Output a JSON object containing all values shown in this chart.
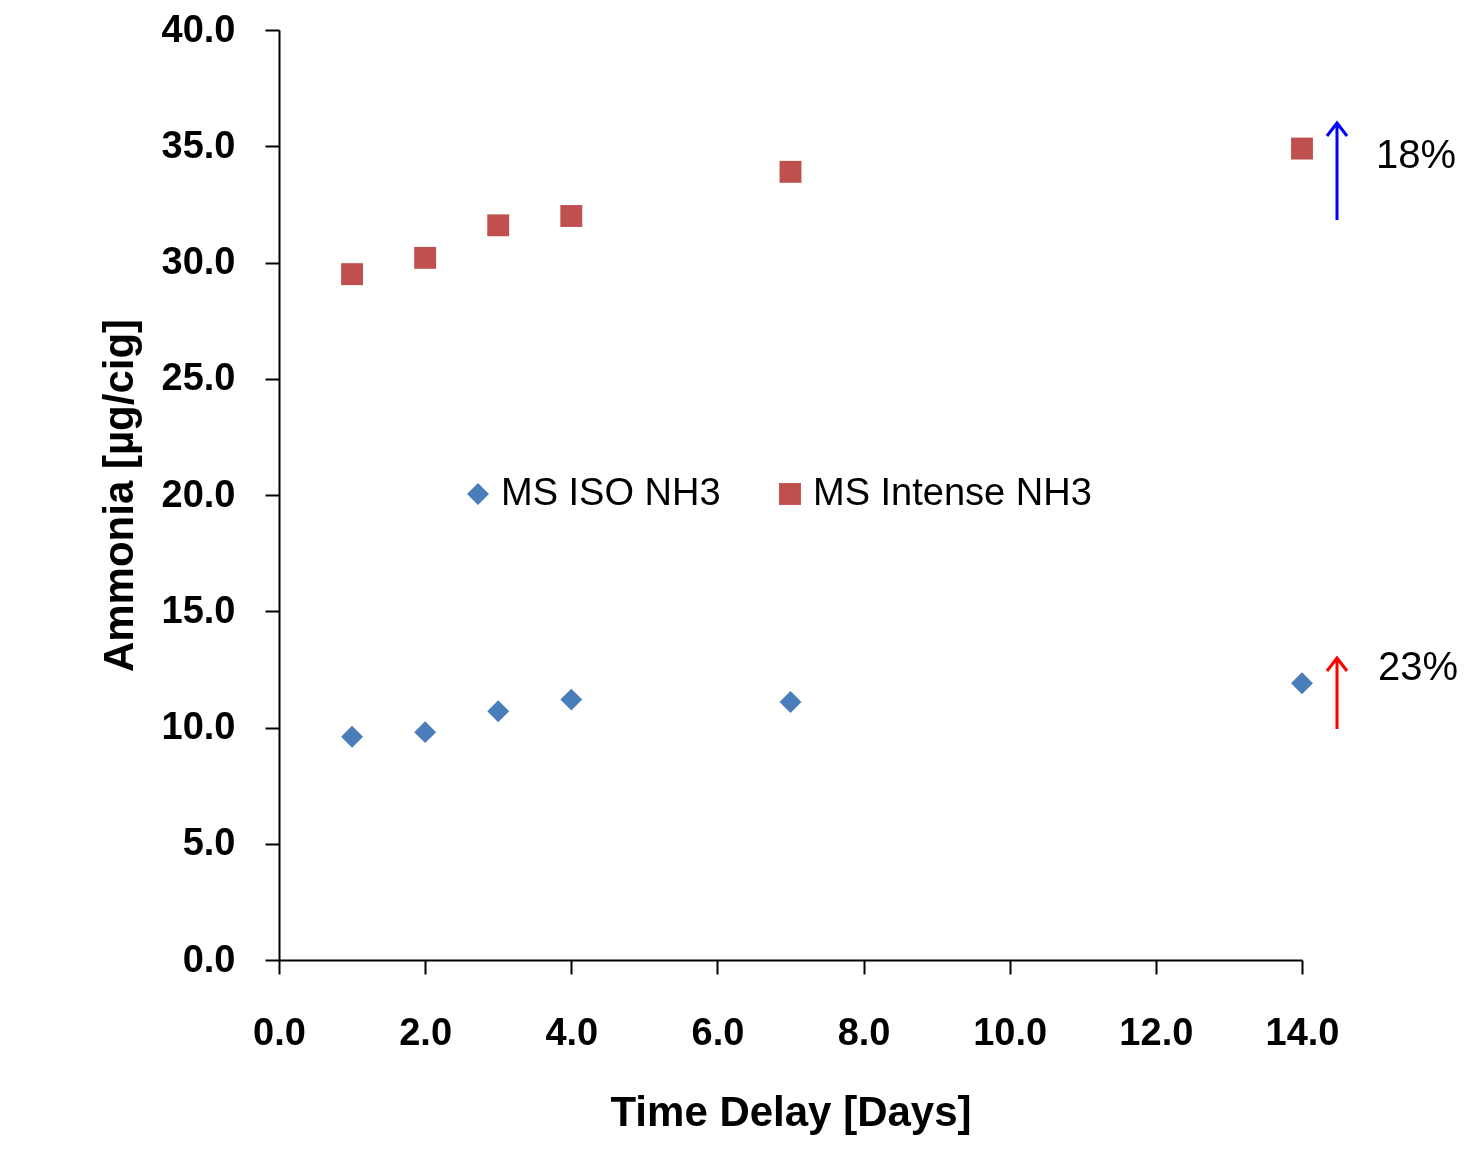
{
  "chart_data": {
    "type": "scatter",
    "xlabel": "Time Delay [Days]",
    "ylabel": "Ammonia [µg/cig]",
    "xlim": [
      0,
      14
    ],
    "xticks": [
      {
        "value": 0,
        "label": "0.0"
      },
      {
        "value": 2,
        "label": "2.0"
      },
      {
        "value": 4,
        "label": "4.0"
      },
      {
        "value": 6,
        "label": "6.0"
      },
      {
        "value": 8,
        "label": "8.0"
      },
      {
        "value": 10,
        "label": "10.0"
      },
      {
        "value": 12,
        "label": "12.0"
      },
      {
        "value": 14,
        "label": "14.0"
      }
    ],
    "ylim": [
      0,
      40
    ],
    "yticks": [
      {
        "value": 0,
        "label": "0.0"
      },
      {
        "value": 5,
        "label": "5.0"
      },
      {
        "value": 10,
        "label": "10.0"
      },
      {
        "value": 15,
        "label": "15.0"
      },
      {
        "value": 20,
        "label": "20.0"
      },
      {
        "value": 25,
        "label": "25.0"
      },
      {
        "value": 30,
        "label": "30.0"
      },
      {
        "value": 35,
        "label": "35.0"
      },
      {
        "value": 40,
        "label": "40.0"
      }
    ],
    "x": [
      1,
      2,
      3,
      4,
      7,
      14
    ],
    "series": [
      {
        "name": "MS ISO NH3",
        "color": "#4a7ebb",
        "marker": "diamond",
        "values": [
          9.6,
          9.8,
          10.7,
          11.2,
          11.1,
          11.9
        ]
      },
      {
        "name": "MS Intense NH3",
        "color": "#c0504d",
        "marker": "square",
        "values": [
          29.5,
          30.2,
          31.6,
          32.0,
          33.9,
          34.9
        ]
      }
    ],
    "legend": "center",
    "grid": false,
    "annotations": [
      "18%",
      "23%"
    ]
  }
}
